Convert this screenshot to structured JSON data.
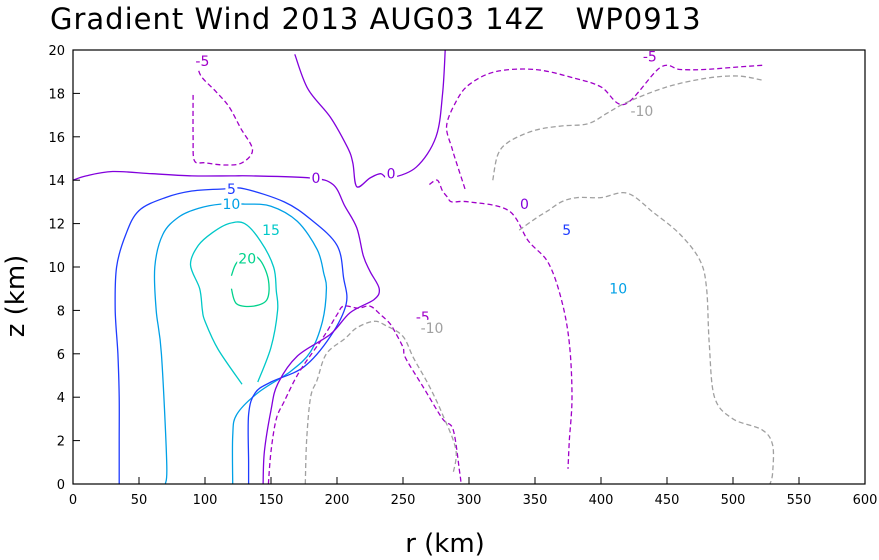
{
  "chart_data": {
    "type": "contour",
    "title": "Gradient Wind 2013 AUG03 14Z   WP0913",
    "xlabel": "r (km)",
    "ylabel": "z (km)",
    "xlim": [
      0,
      600
    ],
    "ylim": [
      0,
      20
    ],
    "xticks": [
      "0",
      "50",
      "100",
      "150",
      "200",
      "250",
      "300",
      "350",
      "400",
      "450",
      "500",
      "550",
      "600"
    ],
    "yticks": [
      "0",
      "2",
      "4",
      "6",
      "8",
      "10",
      "12",
      "14",
      "16",
      "18",
      "20"
    ],
    "grid": false,
    "levels": [
      {
        "value": -10,
        "label": "-10",
        "color": "#a0a0a0",
        "dashed": true
      },
      {
        "value": -5,
        "label": "-5",
        "color": "#a000c8",
        "dashed": true
      },
      {
        "value": 0,
        "label": "0",
        "color": "#8200dc",
        "dashed": false
      },
      {
        "value": 5,
        "label": "5",
        "color": "#1e3cff",
        "dashed": false
      },
      {
        "value": 10,
        "label": "10",
        "color": "#00a0e6",
        "dashed": false
      },
      {
        "value": 15,
        "label": "15",
        "color": "#00c8c8",
        "dashed": false
      },
      {
        "value": 20,
        "label": "20",
        "color": "#00d28c",
        "dashed": false
      }
    ],
    "contours": [
      {
        "level": 20,
        "points": [
          [
            120,
            9.6
          ],
          [
            124,
            10.2
          ],
          [
            133,
            10.6
          ],
          [
            142,
            10.3
          ],
          [
            148,
            9.4
          ],
          [
            147,
            8.5
          ],
          [
            137,
            8.2
          ],
          [
            124,
            8.3
          ],
          [
            120,
            9
          ]
        ]
      },
      {
        "level": 15,
        "points": [
          [
            128,
            4.6
          ],
          [
            110,
            6.2
          ],
          [
            100,
            7.5
          ],
          [
            98,
            8
          ],
          [
            96,
            9
          ],
          [
            89,
            10.1
          ],
          [
            95,
            11
          ],
          [
            106,
            11.6
          ],
          [
            118,
            12
          ],
          [
            130,
            12
          ],
          [
            142,
            11.2
          ],
          [
            152,
            10
          ],
          [
            154,
            8.9
          ],
          [
            155,
            8
          ],
          [
            150,
            6.3
          ],
          [
            140,
            4.7
          ]
        ]
      },
      {
        "level": 10,
        "points": [
          [
            70,
            0
          ],
          [
            71,
            1
          ],
          [
            67,
            6
          ],
          [
            63,
            8
          ],
          [
            62,
            10
          ],
          [
            68,
            11.5
          ],
          [
            80,
            12.3
          ],
          [
            95,
            12.7
          ],
          [
            112,
            12.9
          ],
          [
            130,
            12.9
          ],
          [
            150,
            12.8
          ],
          [
            170,
            12.1
          ],
          [
            185,
            10.8
          ],
          [
            190,
            9.7
          ],
          [
            192,
            9
          ],
          [
            189,
            7.5
          ],
          [
            180,
            6.1
          ],
          [
            165,
            5.2
          ],
          [
            140,
            4.2
          ],
          [
            124,
            3.2
          ],
          [
            121,
            2.2
          ],
          [
            121,
            0
          ]
        ]
      },
      {
        "level": 5,
        "points": [
          [
            35,
            0
          ],
          [
            35,
            2
          ],
          [
            35,
            4
          ],
          [
            34,
            6
          ],
          [
            32,
            8
          ],
          [
            33,
            10
          ],
          [
            40,
            11.5
          ],
          [
            50,
            12.6
          ],
          [
            70,
            13.2
          ],
          [
            90,
            13.5
          ],
          [
            115,
            13.6
          ],
          [
            130,
            13.6
          ],
          [
            160,
            13
          ],
          [
            180,
            12.2
          ],
          [
            200,
            11
          ],
          [
            205,
            9.5
          ],
          [
            207,
            8.3
          ],
          [
            195,
            6.8
          ],
          [
            175,
            5.4
          ],
          [
            150,
            4.7
          ],
          [
            138,
            4.2
          ],
          [
            133,
            3.2
          ],
          [
            133,
            1
          ],
          [
            133,
            0
          ]
        ]
      },
      {
        "level": 0,
        "points": [
          [
            0,
            14
          ],
          [
            10,
            14.2
          ],
          [
            30,
            14.4
          ],
          [
            60,
            14.3
          ],
          [
            90,
            14.2
          ],
          [
            120,
            14.2
          ],
          [
            135,
            14.2
          ],
          [
            180,
            14.1
          ],
          [
            197,
            13.8
          ],
          [
            206,
            12.8
          ],
          [
            215,
            11.8
          ],
          [
            220,
            10.5
          ],
          [
            225,
            9.8
          ],
          [
            232,
            9
          ],
          [
            228,
            8.5
          ],
          [
            210,
            7.9
          ],
          [
            195,
            6.9
          ],
          [
            170,
            5.9
          ],
          [
            155,
            4.6
          ],
          [
            150,
            3.4
          ],
          [
            145,
            1.5
          ],
          [
            144,
            0
          ]
        ]
      },
      {
        "level": 0,
        "points": [
          [
            168,
            19.8
          ],
          [
            178,
            18.2
          ],
          [
            195,
            16.9
          ],
          [
            208,
            15.5
          ],
          [
            212,
            14.8
          ],
          [
            215,
            13.7
          ],
          [
            225,
            14.1
          ],
          [
            233,
            14.3
          ],
          [
            240,
            14.1
          ],
          [
            260,
            14.6
          ],
          [
            275,
            16
          ],
          [
            280,
            18
          ],
          [
            282,
            20
          ]
        ]
      },
      {
        "level": -5,
        "points": [
          [
            94,
            19.4
          ],
          [
            97,
            18.8
          ],
          [
            108,
            18.1
          ],
          [
            118,
            17.4
          ],
          [
            127,
            16.4
          ],
          [
            136,
            15.4
          ],
          [
            128,
            14.8
          ],
          [
            115,
            14.7
          ],
          [
            100,
            14.8
          ],
          [
            92,
            14.9
          ],
          [
            91,
            16
          ],
          [
            91,
            18
          ]
        ]
      },
      {
        "level": -5,
        "points": [
          [
            148,
            0
          ],
          [
            150,
            1.5
          ],
          [
            154,
            3
          ],
          [
            160,
            3.8
          ],
          [
            168,
            4.8
          ],
          [
            175,
            5.5
          ],
          [
            190,
            6.8
          ],
          [
            200,
            7.8
          ],
          [
            205,
            8.2
          ],
          [
            216,
            8.1
          ],
          [
            225,
            8.2
          ],
          [
            233,
            7.8
          ],
          [
            240,
            7.4
          ],
          [
            244,
            7
          ],
          [
            250,
            6.3
          ],
          [
            252,
            5.8
          ],
          [
            265,
            4.5
          ],
          [
            280,
            3
          ],
          [
            288,
            2.5
          ],
          [
            293,
            0.5
          ],
          [
            294,
            0
          ]
        ]
      },
      {
        "level": -5,
        "points": [
          [
            270,
            13.8
          ],
          [
            276,
            14
          ],
          [
            280,
            13.5
          ],
          [
            284,
            13.2
          ],
          [
            287,
            13
          ],
          [
            300,
            13
          ],
          [
            330,
            12.6
          ],
          [
            345,
            11.2
          ],
          [
            360,
            10.2
          ],
          [
            370,
            8.5
          ],
          [
            376,
            6.5
          ],
          [
            378,
            4
          ],
          [
            376,
            2
          ],
          [
            375,
            0.7
          ]
        ]
      },
      {
        "level": -5,
        "points": [
          [
            297,
            13.6
          ],
          [
            290,
            14.9
          ],
          [
            287,
            15.5
          ],
          [
            283,
            16.5
          ],
          [
            290,
            17.6
          ],
          [
            300,
            18.4
          ],
          [
            320,
            19
          ],
          [
            350,
            19.1
          ],
          [
            380,
            18.7
          ],
          [
            400,
            18.3
          ],
          [
            418,
            17.5
          ],
          [
            445,
            19.2
          ],
          [
            460,
            19.1
          ],
          [
            478,
            19.1
          ],
          [
            500,
            19.2
          ],
          [
            523,
            19.3
          ]
        ]
      },
      {
        "level": -10,
        "points": [
          [
            176,
            0
          ],
          [
            177,
            2
          ],
          [
            180,
            4
          ],
          [
            185,
            4.8
          ],
          [
            192,
            6
          ],
          [
            206,
            6.7
          ],
          [
            215,
            7.2
          ],
          [
            228,
            7.5
          ],
          [
            237,
            7.3
          ],
          [
            250,
            6.8
          ],
          [
            258,
            5.8
          ],
          [
            270,
            4.5
          ],
          [
            280,
            3.2
          ],
          [
            290,
            1.6
          ],
          [
            288,
            0.5
          ]
        ]
      },
      {
        "level": -10,
        "points": [
          [
            338,
            11.7
          ],
          [
            352,
            12.3
          ],
          [
            360,
            12.6
          ],
          [
            370,
            13
          ],
          [
            382,
            13.2
          ],
          [
            400,
            13.2
          ],
          [
            420,
            13.4
          ],
          [
            440,
            12.5
          ],
          [
            460,
            11.5
          ],
          [
            475,
            10.3
          ],
          [
            480,
            9
          ],
          [
            482,
            6.5
          ],
          [
            486,
            4
          ],
          [
            500,
            3
          ],
          [
            522,
            2.5
          ],
          [
            530,
            1.8
          ],
          [
            530,
            0.5
          ],
          [
            528,
            0
          ]
        ]
      },
      {
        "level": -10,
        "points": [
          [
            318,
            14
          ],
          [
            322,
            15.2
          ],
          [
            331,
            15.8
          ],
          [
            350,
            16.3
          ],
          [
            370,
            16.5
          ],
          [
            390,
            16.6
          ],
          [
            405,
            17.1
          ],
          [
            420,
            17.6
          ],
          [
            450,
            18.3
          ],
          [
            480,
            18.7
          ],
          [
            504,
            18.8
          ],
          [
            523,
            18.6
          ]
        ]
      }
    ],
    "contour_labels": [
      {
        "text": "-5",
        "level": -5,
        "x": 98,
        "y": 19.5
      },
      {
        "text": "0",
        "level": 0,
        "x": 184,
        "y": 14.1
      },
      {
        "text": "0",
        "level": 0,
        "x": 241,
        "y": 14.3
      },
      {
        "text": "5",
        "level": 5,
        "x": 120,
        "y": 13.6
      },
      {
        "text": "10",
        "level": 10,
        "x": 120,
        "y": 12.9
      },
      {
        "text": "15",
        "level": 15,
        "x": 150,
        "y": 11.7
      },
      {
        "text": "20",
        "level": 20,
        "x": 132,
        "y": 10.4
      },
      {
        "text": "-5",
        "level": -5,
        "x": 265,
        "y": 7.7
      },
      {
        "text": "-10",
        "level": -10,
        "x": 272,
        "y": 7.2
      },
      {
        "text": "0",
        "level": 0,
        "x": 342,
        "y": 12.9
      },
      {
        "text": "5",
        "level": 5,
        "x": 374,
        "y": 11.7
      },
      {
        "text": "10",
        "level": 10,
        "x": 413,
        "y": 9
      },
      {
        "text": "-5",
        "level": -5,
        "x": 437,
        "y": 19.7
      },
      {
        "text": "-10",
        "level": -10,
        "x": 431,
        "y": 17.2
      }
    ]
  }
}
